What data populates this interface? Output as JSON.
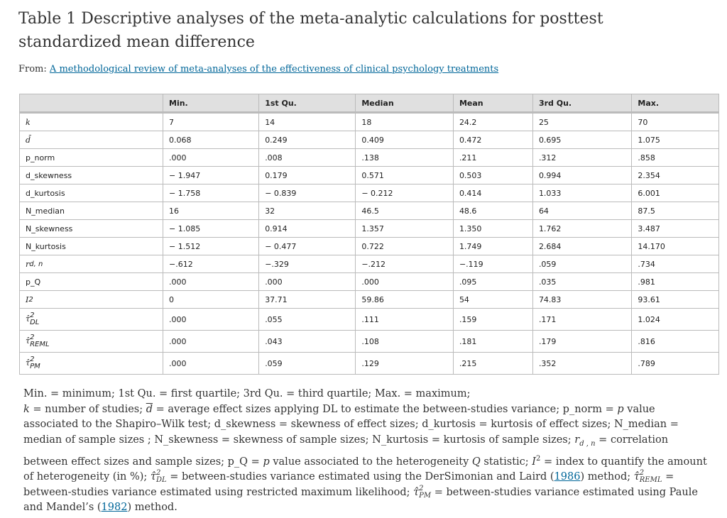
{
  "header": {
    "title": "Table 1 Descriptive analyses of the meta-analytic calculations for posttest standardized mean difference",
    "from_label": "From:",
    "source_link": "A methodological review of meta-analyses of the effectiveness of clinical psychology treatments"
  },
  "table": {
    "columns": [
      "Min.",
      "1st Qu.",
      "Median",
      "Mean",
      "3rd Qu.",
      "Max."
    ],
    "rows": [
      {
        "label": "k",
        "values": [
          "7",
          "14",
          "18",
          "24.2",
          "25",
          "70"
        ]
      },
      {
        "label": "d̄",
        "values": [
          "0.068",
          "0.249",
          "0.409",
          "0.472",
          "0.695",
          "1.075"
        ]
      },
      {
        "label": "p_norm",
        "values": [
          ".000",
          ".008",
          ".138",
          ".211",
          ".312",
          ".858"
        ]
      },
      {
        "label": "d_skewness",
        "values": [
          "− 1.947",
          "0.179",
          "0.571",
          "0.503",
          "0.994",
          "2.354"
        ]
      },
      {
        "label": "d_kurtosis",
        "values": [
          "− 1.758",
          "− 0.839",
          "− 0.212",
          "0.414",
          "1.033",
          "6.001"
        ]
      },
      {
        "label": "N_median",
        "values": [
          "16",
          "32",
          "46.5",
          "48.6",
          "64",
          "87.5"
        ]
      },
      {
        "label": "N_skewness",
        "values": [
          "− 1.085",
          "0.914",
          "1.357",
          "1.350",
          "1.762",
          "3.487"
        ]
      },
      {
        "label": "N_kurtosis",
        "values": [
          "− 1.512",
          "− 0.477",
          "0.722",
          "1.749",
          "2.684",
          "14.170"
        ]
      },
      {
        "label": "r",
        "sub": "d, n",
        "values": [
          "−.612",
          "−.329",
          "−.212",
          "−.119",
          ".059",
          ".734"
        ]
      },
      {
        "label": "p_Q",
        "values": [
          ".000",
          ".000",
          ".000",
          ".095",
          ".035",
          ".981"
        ]
      },
      {
        "label": "I",
        "sup": "2",
        "values": [
          "0",
          "37.71",
          "59.86",
          "54",
          "74.83",
          "93.61"
        ]
      },
      {
        "label": "τ̂",
        "sup": "2",
        "sub": "DL",
        "values": [
          ".000",
          ".055",
          ".111",
          ".159",
          ".171",
          "1.024"
        ]
      },
      {
        "label": "τ̂",
        "sup": "2",
        "sub": "REML",
        "values": [
          ".000",
          ".043",
          ".108",
          ".181",
          ".179",
          ".816"
        ]
      },
      {
        "label": "τ̂",
        "sup": "2",
        "sub": "PM",
        "values": [
          ".000",
          ".059",
          ".129",
          ".215",
          ".352",
          ".789"
        ]
      }
    ]
  },
  "footnote": {
    "line1": "Min. = minimum; 1st Qu. = first quartile; 3rd Qu. = third quartile; Max. = maximum;",
    "segments": [
      "k",
      " = number of studies; ",
      "d",
      " = average effect sizes applying DL to estimate the between-studies variance; p_norm = ",
      "p",
      " value associated to the Shapiro–Wilk test; d_skewness = skewness of effect sizes; d_kurtosis = kurtosis of effect sizes; N_median = median of sample sizes ; N_skewness = skewness of sample sizes; N_kurtosis = kurtosis of sample sizes; ",
      "r",
      "d , n",
      " = correlation between effect sizes and sample sizes; p_Q = ",
      "p",
      " value associated to the heterogeneity ",
      "Q",
      " statistic; ",
      "I",
      "2",
      " = index to quantify the amount of heterogeneity (in %); ",
      "τ̂",
      "2",
      "DL",
      " = between-studies variance estimated using the DerSimonian and Laird (",
      "1986",
      ") method; ",
      "τ̂",
      "2",
      "REML",
      " = between-studies variance estimated using restricted maximum likelihood; ",
      "τ̂",
      "2",
      "PM",
      " = between-studies variance estimated using Paule and Mandel’s (",
      "1982",
      ") method."
    ]
  }
}
